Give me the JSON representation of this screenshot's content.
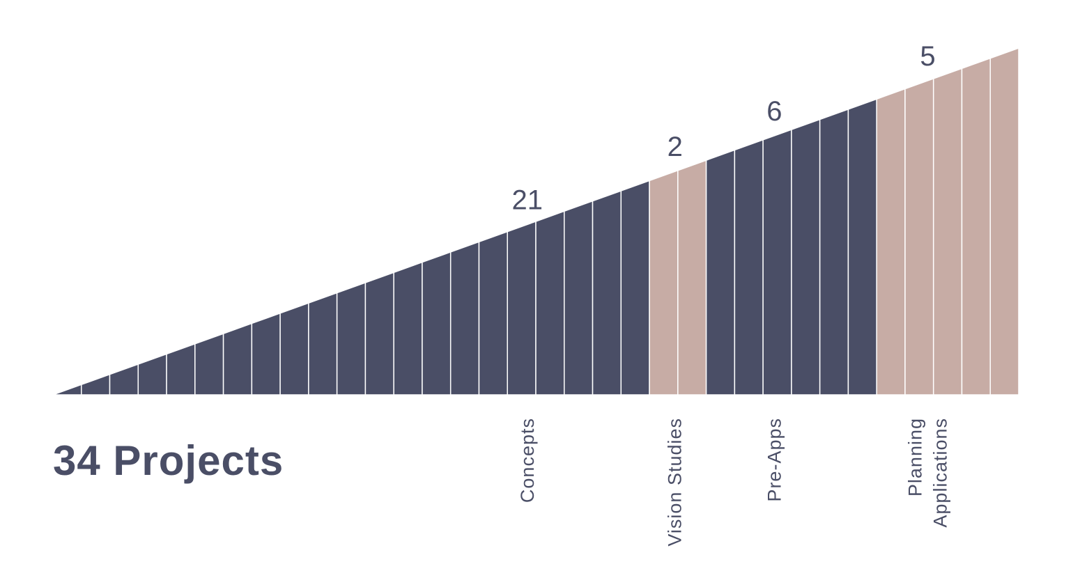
{
  "total_label": "34 Projects",
  "colors": {
    "dark": "#4a4e66",
    "light": "#c7aca5",
    "divider": "#ffffff"
  },
  "chart_data": {
    "type": "area",
    "total": 34,
    "categories": [
      {
        "label": "Concepts",
        "lines": [
          "Concepts"
        ],
        "count": 21,
        "count_label": "21",
        "color": "#4a4e66"
      },
      {
        "label": "Vision Studies",
        "lines": [
          "Vision Studies"
        ],
        "count": 2,
        "count_label": "2",
        "color": "#c7aca5"
      },
      {
        "label": "Pre-Apps",
        "lines": [
          "Pre-Apps"
        ],
        "count": 6,
        "count_label": "6",
        "color": "#4a4e66"
      },
      {
        "label": "Planning Applications",
        "lines": [
          "Planning",
          "Applications"
        ],
        "count": 5,
        "count_label": "5",
        "color": "#c7aca5"
      }
    ]
  }
}
